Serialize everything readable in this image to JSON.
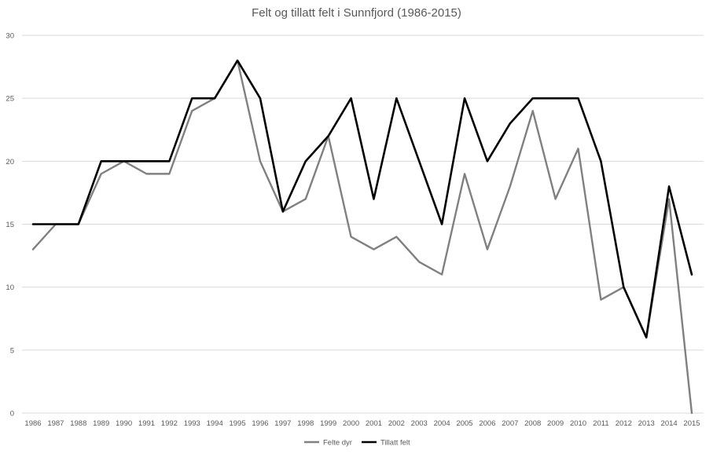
{
  "chart_data": {
    "type": "line",
    "title": "Felt og tillatt  felt i Sunnfjord (1986-2015)",
    "xlabel": "",
    "ylabel": "",
    "categories": [
      "1986",
      "1987",
      "1988",
      "1989",
      "1990",
      "1991",
      "1992",
      "1993",
      "1994",
      "1995",
      "1996",
      "1997",
      "1998",
      "1999",
      "2000",
      "2001",
      "2002",
      "2003",
      "2004",
      "2005",
      "2006",
      "2007",
      "2008",
      "2009",
      "2010",
      "2011",
      "2012",
      "2013",
      "2014",
      "2015"
    ],
    "ylim": [
      0,
      30
    ],
    "yticks": [
      0,
      5,
      10,
      15,
      20,
      25,
      30
    ],
    "grid": true,
    "legend_position": "bottom",
    "series": [
      {
        "name": "Felte dyr",
        "color": "#808080",
        "values": [
          13,
          15,
          15,
          19,
          20,
          19,
          19,
          24,
          25,
          28,
          20,
          16,
          17,
          22,
          14,
          13,
          14,
          12,
          11,
          19,
          13,
          18,
          24,
          17,
          21,
          9,
          10,
          6,
          17,
          0
        ]
      },
      {
        "name": "Tillatt felt",
        "color": "#000000",
        "values": [
          15,
          15,
          15,
          20,
          20,
          20,
          20,
          25,
          25,
          28,
          25,
          16,
          20,
          22,
          25,
          17,
          25,
          20,
          15,
          25,
          20,
          23,
          25,
          25,
          25,
          20,
          10,
          6,
          18,
          11
        ]
      }
    ]
  }
}
